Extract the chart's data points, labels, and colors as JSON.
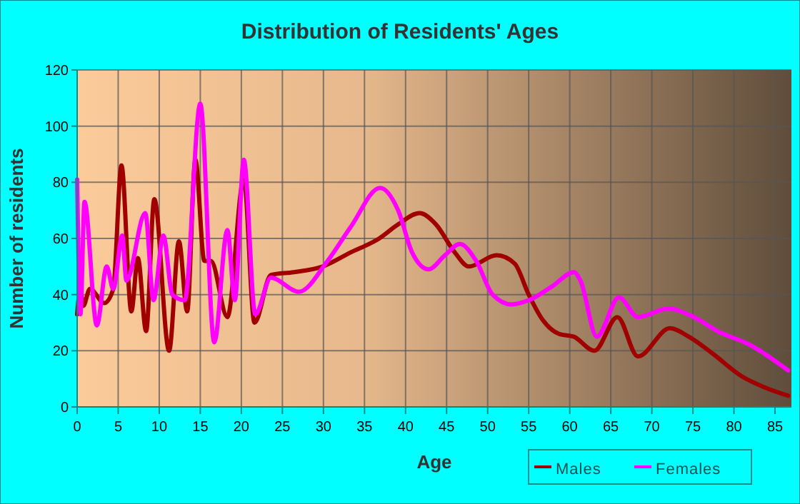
{
  "chart_data": {
    "type": "line",
    "title": "Distribution of Residents' Ages",
    "xlabel": "Age",
    "ylabel": "Number of residents",
    "xlim": [
      0,
      87
    ],
    "xticks": [
      0,
      5,
      10,
      15,
      20,
      25,
      30,
      35,
      40,
      45,
      50,
      55,
      60,
      65,
      70,
      75,
      80,
      85
    ],
    "ylim": [
      0,
      120
    ],
    "yticks": [
      0,
      20,
      40,
      60,
      80,
      100,
      120
    ],
    "grid": true,
    "legend": "bottom",
    "marker": "none",
    "line_style": "solid",
    "series": [
      {
        "name": "Males",
        "color": "#a00000",
        "x": [
          0,
          0.4,
          0.75,
          1.55,
          3.3,
          4.4,
          5.4,
          6.6,
          7.4,
          8.4,
          9.4,
          11.2,
          12.4,
          13.4,
          14.4,
          15.5,
          16.3,
          18.3,
          20.3,
          21.6,
          23.6,
          26.4,
          29.9,
          33.3,
          36.8,
          39.1,
          41.7,
          43.7,
          46,
          47.7,
          51.1,
          53.3,
          55,
          56.7,
          58.7,
          60.5,
          63,
          65.8,
          68.3,
          72.2,
          74.5,
          77.4,
          80.9,
          83.7,
          86.6
        ],
        "values": [
          33,
          42,
          36,
          42,
          37,
          42,
          86,
          34,
          53,
          27,
          74,
          20,
          59,
          34,
          88,
          52,
          52,
          32,
          81,
          30,
          47,
          48,
          50,
          55,
          60,
          65,
          69,
          65,
          55,
          50,
          54,
          51,
          40,
          31,
          26,
          25,
          20,
          32,
          18,
          28,
          25,
          19,
          11,
          7,
          4
        ]
      },
      {
        "name": "Females",
        "color": "#ff00ff",
        "x": [
          0,
          0.4,
          0.9,
          2.4,
          3.6,
          4.4,
          5.5,
          6,
          8.3,
          9.3,
          10.5,
          11.6,
          13.1,
          15,
          16.7,
          18.3,
          19.2,
          20.3,
          21.7,
          23.6,
          27,
          30.5,
          33.3,
          36.9,
          39.1,
          40.8,
          42.8,
          44.8,
          46.6,
          48.6,
          50.6,
          52.9,
          55,
          57.9,
          60.5,
          61.3,
          63.3,
          66,
          68.3,
          72,
          75.1,
          78,
          82,
          86.6
        ],
        "values": [
          81,
          33,
          73,
          29,
          50,
          42,
          61,
          45,
          69,
          38,
          61,
          40,
          38,
          108,
          23,
          63,
          38,
          88,
          33,
          46,
          41,
          52,
          64,
          78,
          70,
          55,
          49,
          54,
          58,
          52,
          40,
          36.5,
          38,
          43,
          48,
          45,
          25,
          39,
          32,
          35,
          32,
          27,
          22,
          13
        ]
      }
    ]
  }
}
